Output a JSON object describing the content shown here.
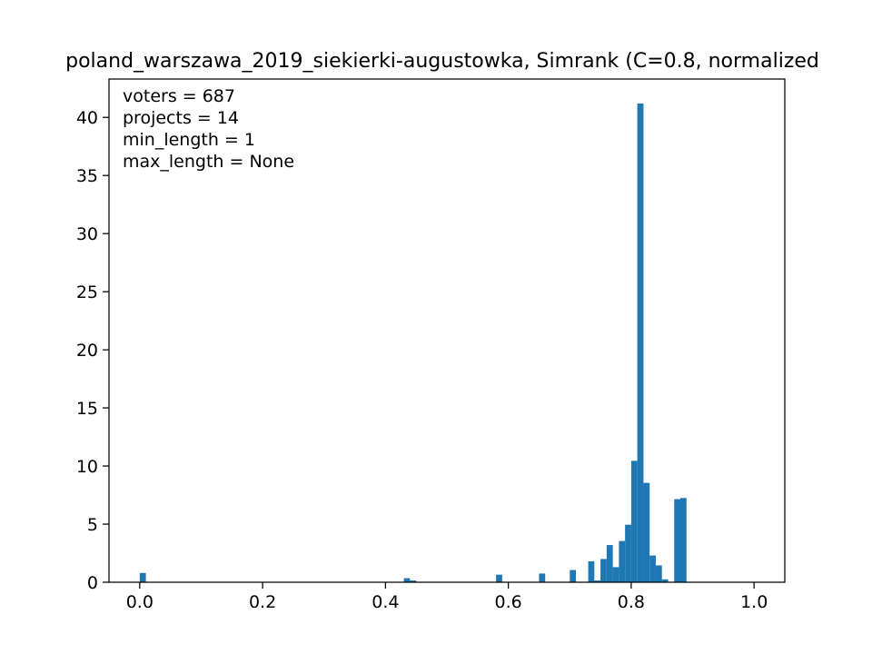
{
  "chart_data": {
    "type": "bar",
    "title": "poland_warszawa_2019_siekierki-augustowka, Simrank (C=0.8, normalized",
    "xlabel": "",
    "ylabel": "",
    "xlim": [
      -0.05,
      1.05
    ],
    "ylim": [
      0,
      43.3
    ],
    "bin_width": 0.01,
    "grid": false,
    "x_ticks": [
      {
        "value": 0.0,
        "label": "0.0"
      },
      {
        "value": 0.2,
        "label": "0.2"
      },
      {
        "value": 0.4,
        "label": "0.4"
      },
      {
        "value": 0.6,
        "label": "0.6"
      },
      {
        "value": 0.8,
        "label": "0.8"
      },
      {
        "value": 1.0,
        "label": "1.0"
      }
    ],
    "y_ticks": [
      {
        "value": 0,
        "label": "0"
      },
      {
        "value": 5,
        "label": "5"
      },
      {
        "value": 10,
        "label": "10"
      },
      {
        "value": 15,
        "label": "15"
      },
      {
        "value": 20,
        "label": "20"
      },
      {
        "value": 25,
        "label": "25"
      },
      {
        "value": 30,
        "label": "30"
      },
      {
        "value": 35,
        "label": "35"
      },
      {
        "value": 40,
        "label": "40"
      }
    ],
    "annotations": [
      "voters = 687",
      "projects = 14",
      "min_length = 1",
      "max_length = None"
    ],
    "bins": [
      {
        "x": 0.0,
        "y": 0.8
      },
      {
        "x": 0.43,
        "y": 0.35
      },
      {
        "x": 0.44,
        "y": 0.15
      },
      {
        "x": 0.58,
        "y": 0.65
      },
      {
        "x": 0.65,
        "y": 0.75
      },
      {
        "x": 0.7,
        "y": 1.05
      },
      {
        "x": 0.73,
        "y": 1.8
      },
      {
        "x": 0.74,
        "y": 0.15
      },
      {
        "x": 0.75,
        "y": 2.0
      },
      {
        "x": 0.76,
        "y": 3.2
      },
      {
        "x": 0.77,
        "y": 1.3
      },
      {
        "x": 0.78,
        "y": 3.55
      },
      {
        "x": 0.79,
        "y": 4.95
      },
      {
        "x": 0.8,
        "y": 10.45
      },
      {
        "x": 0.81,
        "y": 41.2
      },
      {
        "x": 0.82,
        "y": 8.55
      },
      {
        "x": 0.83,
        "y": 2.3
      },
      {
        "x": 0.84,
        "y": 1.45
      },
      {
        "x": 0.85,
        "y": 0.25
      },
      {
        "x": 0.87,
        "y": 7.15
      },
      {
        "x": 0.88,
        "y": 7.25
      }
    ],
    "colors": {
      "bar": "#1f77b4",
      "axis": "#000000",
      "background": "#ffffff"
    }
  }
}
